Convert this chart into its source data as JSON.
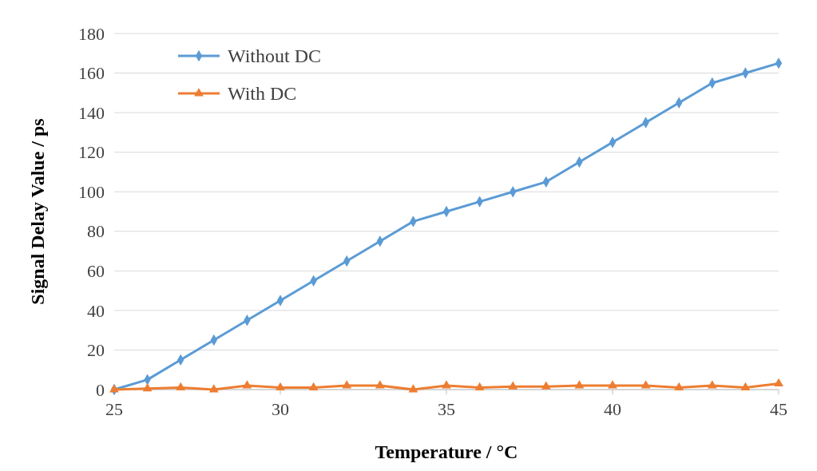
{
  "chart_data": {
    "type": "line",
    "xlabel": "Temperature / °C",
    "ylabel": "Signal Delay Value / ps",
    "x": [
      25,
      26,
      27,
      28,
      29,
      30,
      31,
      32,
      33,
      34,
      35,
      36,
      37,
      38,
      39,
      40,
      41,
      42,
      43,
      44,
      45
    ],
    "series": [
      {
        "name": "Without DC",
        "color": "#5b9bd5",
        "marker": "diamond",
        "values": [
          0,
          5,
          15,
          25,
          35,
          45,
          55,
          65,
          75,
          85,
          90,
          95,
          100,
          105,
          115,
          125,
          135,
          145,
          155,
          160,
          165
        ]
      },
      {
        "name": "With DC",
        "color": "#ed7d31",
        "marker": "triangle",
        "values": [
          0,
          0.5,
          1,
          0,
          2,
          1,
          1,
          2,
          2,
          0,
          2,
          1,
          1.5,
          1.5,
          2,
          2,
          2,
          1,
          2,
          1,
          3
        ]
      }
    ],
    "xlim": [
      25,
      45
    ],
    "xticks": [
      25,
      30,
      35,
      40,
      45
    ],
    "ylim": [
      0,
      180
    ],
    "yticks": [
      0,
      20,
      40,
      60,
      80,
      100,
      120,
      140,
      160,
      180
    ],
    "grid": "y",
    "legend": "top left",
    "line_style": "solid"
  }
}
